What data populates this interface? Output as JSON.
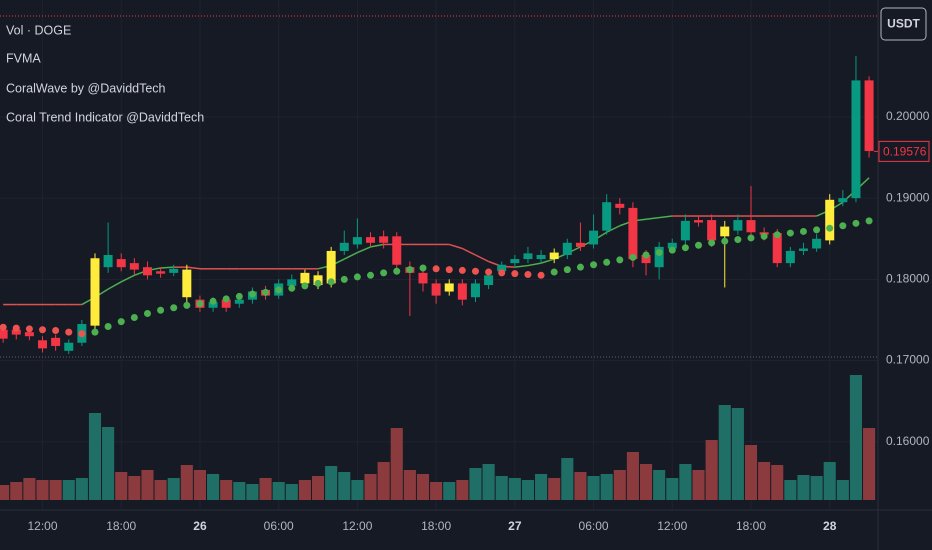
{
  "chart_data": {
    "type": "candlestick",
    "currency_button": "USDT",
    "x": [
      -15,
      -14,
      -13,
      -12,
      -11,
      -10,
      -9,
      -8,
      -7,
      -6,
      -5,
      -4,
      -3,
      -2,
      -1,
      0,
      1,
      2,
      3,
      4,
      5,
      6,
      7,
      8,
      9,
      10,
      11,
      12,
      13,
      14,
      15,
      16,
      17,
      18,
      19,
      20,
      21,
      22,
      23,
      24,
      25,
      26,
      27,
      28,
      29,
      30,
      31,
      32,
      33,
      34,
      35,
      36,
      37,
      38,
      39,
      40,
      41,
      42,
      43,
      44,
      45,
      46,
      47,
      48,
      49,
      50,
      51
    ],
    "open": [
      0.1738,
      0.1738,
      0.1735,
      0.1725,
      0.1728,
      0.1712,
      0.1722,
      0.1743,
      0.1815,
      0.1825,
      0.182,
      0.1815,
      0.181,
      0.1808,
      0.1812,
      0.1775,
      0.1765,
      0.1775,
      0.177,
      0.1775,
      0.1787,
      0.178,
      0.1792,
      0.1808,
      0.1805,
      0.1795,
      0.1835,
      0.1843,
      0.1852,
      0.1853,
      0.1853,
      0.1815,
      0.1808,
      0.1795,
      0.1785,
      0.1795,
      0.1778,
      0.1793,
      0.181,
      0.182,
      0.1825,
      0.1825,
      0.1833,
      0.183,
      0.1845,
      0.1843,
      0.186,
      0.1893,
      0.1888,
      0.183,
      0.1815,
      0.1838,
      0.1848,
      0.1873,
      0.1873,
      0.1853,
      0.186,
      0.1873,
      0.1858,
      0.1857,
      0.182,
      0.1835,
      0.1838,
      0.1848,
      0.1895,
      0.19,
      0.2045
    ],
    "high": [
      0.1745,
      0.1742,
      0.174,
      0.173,
      0.1732,
      0.1726,
      0.175,
      0.1832,
      0.187,
      0.1832,
      0.1826,
      0.1822,
      0.1815,
      0.1818,
      0.1818,
      0.178,
      0.1778,
      0.178,
      0.1782,
      0.179,
      0.1792,
      0.18,
      0.1806,
      0.1812,
      0.181,
      0.184,
      0.186,
      0.1875,
      0.1858,
      0.186,
      0.1858,
      0.1822,
      0.1812,
      0.18,
      0.18,
      0.18,
      0.18,
      0.181,
      0.1822,
      0.183,
      0.184,
      0.1836,
      0.1838,
      0.185,
      0.187,
      0.188,
      0.1905,
      0.19,
      0.1895,
      0.1836,
      0.1846,
      0.185,
      0.188,
      0.1878,
      0.188,
      0.1872,
      0.188,
      0.1915,
      0.1864,
      0.1862,
      0.184,
      0.1845,
      0.1856,
      0.1905,
      0.191,
      0.2075,
      0.205
    ],
    "low": [
      0.1722,
      0.1726,
      0.1725,
      0.171,
      0.1712,
      0.1708,
      0.1718,
      0.1738,
      0.1808,
      0.181,
      0.1806,
      0.18,
      0.1802,
      0.1804,
      0.1772,
      0.176,
      0.176,
      0.176,
      0.1765,
      0.177,
      0.1775,
      0.1776,
      0.1788,
      0.179,
      0.1788,
      0.179,
      0.183,
      0.1838,
      0.184,
      0.1838,
      0.1812,
      0.1755,
      0.1785,
      0.177,
      0.178,
      0.1768,
      0.1772,
      0.1788,
      0.1805,
      0.1815,
      0.182,
      0.182,
      0.182,
      0.1825,
      0.1835,
      0.1838,
      0.1855,
      0.188,
      0.1815,
      0.1805,
      0.18,
      0.1832,
      0.1842,
      0.1865,
      0.184,
      0.179,
      0.1855,
      0.185,
      0.1848,
      0.1815,
      0.1815,
      0.183,
      0.1834,
      0.1843,
      0.189,
      0.1895,
      0.195
    ],
    "close": [
      0.1727,
      0.1732,
      0.173,
      0.1715,
      0.1718,
      0.1722,
      0.1745,
      0.1826,
      0.183,
      0.1815,
      0.1812,
      0.1805,
      0.1807,
      0.1813,
      0.1778,
      0.1765,
      0.1772,
      0.1765,
      0.1775,
      0.1785,
      0.178,
      0.1795,
      0.18,
      0.1795,
      0.1793,
      0.1835,
      0.1845,
      0.1852,
      0.1845,
      0.1845,
      0.1818,
      0.1808,
      0.1795,
      0.178,
      0.1795,
      0.1775,
      0.1795,
      0.1805,
      0.1818,
      0.1825,
      0.1832,
      0.183,
      0.1825,
      0.1845,
      0.184,
      0.186,
      0.1895,
      0.1888,
      0.1825,
      0.182,
      0.184,
      0.1845,
      0.1872,
      0.187,
      0.1848,
      0.1865,
      0.1873,
      0.1858,
      0.1855,
      0.182,
      0.1835,
      0.1838,
      0.185,
      0.1898,
      0.19,
      0.2045,
      0.1958
    ],
    "up_color": "#089981",
    "down_color": "#f23645",
    "highlight_color": "#ffeb3b",
    "highlight": [
      -8,
      -1,
      8,
      9,
      10,
      19,
      27,
      40,
      48
    ],
    "last_price": 0.19576,
    "xlim": [
      -15.24,
      51.68
    ],
    "ylim": [
      0.1516,
      0.2144
    ],
    "xticks": [
      {
        "value": -12,
        "label": "12:00"
      },
      {
        "value": -6,
        "label": "18:00"
      },
      {
        "value": 0,
        "label": "26"
      },
      {
        "value": 6,
        "label": "06:00"
      },
      {
        "value": 12,
        "label": "12:00"
      },
      {
        "value": 18,
        "label": "18:00"
      },
      {
        "value": 24,
        "label": "27"
      },
      {
        "value": 30,
        "label": "06:00"
      },
      {
        "value": 36,
        "label": "12:00"
      },
      {
        "value": 42,
        "label": "18:00"
      },
      {
        "value": 48,
        "label": "28"
      }
    ],
    "yticks": [
      {
        "value": 0.2,
        "label": "0.20000"
      },
      {
        "value": 0.19,
        "label": "0.19000"
      },
      {
        "value": 0.18,
        "label": "0.18000"
      },
      {
        "value": 0.17,
        "label": "0.17000"
      },
      {
        "value": 0.16,
        "label": "0.16000"
      }
    ],
    "grid": true,
    "volume": {
      "name": "Vol · DOGE",
      "up_color": "#1f6f66",
      "down_color": "#8b3a3d",
      "ylim": [
        0,
        130
      ],
      "values": [
        15,
        18,
        22,
        20,
        20,
        20,
        22,
        87,
        73,
        28,
        24,
        30,
        20,
        22,
        35,
        30,
        26,
        20,
        18,
        16,
        22,
        18,
        16,
        20,
        24,
        34,
        28,
        20,
        26,
        38,
        72,
        30,
        26,
        18,
        18,
        20,
        32,
        36,
        24,
        22,
        20,
        26,
        22,
        42,
        28,
        24,
        26,
        30,
        48,
        36,
        30,
        22,
        36,
        30,
        60,
        95,
        92,
        55,
        38,
        35,
        20,
        25,
        24,
        38,
        20,
        125,
        72
      ]
    },
    "fvma": {
      "name": "FVMA",
      "up_color": "#4caf50",
      "down_color": "#e0524f",
      "values": [
        0.1769,
        0.1769,
        0.1769,
        0.1769,
        0.1769,
        0.1769,
        0.1769,
        0.1778,
        0.1788,
        0.1797,
        0.1805,
        0.1811,
        0.1814,
        0.1815,
        0.1815,
        0.1813,
        0.1813,
        0.1813,
        0.1813,
        0.1813,
        0.1813,
        0.1813,
        0.1813,
        0.1813,
        0.1813,
        0.1817,
        0.1825,
        0.1833,
        0.184,
        0.1843,
        0.1843,
        0.1843,
        0.1843,
        0.1843,
        0.1843,
        0.1838,
        0.183,
        0.1822,
        0.1816,
        0.1815,
        0.1817,
        0.182,
        0.1825,
        0.1832,
        0.184,
        0.1848,
        0.1858,
        0.1866,
        0.1872,
        0.1874,
        0.1876,
        0.1878,
        0.1878,
        0.1878,
        0.1878,
        0.1878,
        0.1878,
        0.1878,
        0.1878,
        0.1878,
        0.1878,
        0.1878,
        0.1878,
        0.1885,
        0.1895,
        0.191,
        0.1925
      ]
    },
    "coralwave": {
      "name": "CoralWave by @DaviddTech",
      "up_color": "#4caf50",
      "down_color": "#ef5350",
      "values": [
        0.1741,
        0.174,
        0.1739,
        0.1738,
        0.1737,
        0.1735,
        0.1733,
        0.1735,
        0.1742,
        0.1748,
        0.1753,
        0.1758,
        0.1762,
        0.1765,
        0.1768,
        0.177,
        0.1773,
        0.1776,
        0.1779,
        0.1782,
        0.1784,
        0.1787,
        0.1789,
        0.1792,
        0.1795,
        0.1797,
        0.18,
        0.1803,
        0.1805,
        0.1808,
        0.181,
        0.1812,
        0.1814,
        0.1813,
        0.1812,
        0.1811,
        0.181,
        0.1809,
        0.1808,
        0.1807,
        0.1806,
        0.1805,
        0.1809,
        0.1812,
        0.1815,
        0.1818,
        0.1821,
        0.1824,
        0.1827,
        0.183,
        0.1833,
        0.1836,
        0.1839,
        0.1842,
        0.1845,
        0.1847,
        0.1849,
        0.1851,
        0.1853,
        0.1855,
        0.1857,
        0.1859,
        0.1861,
        0.1863,
        0.1866,
        0.1869,
        0.1872
      ]
    },
    "coral_trend": {
      "name": "Coral Trend Indicator @DaviddTech"
    }
  }
}
